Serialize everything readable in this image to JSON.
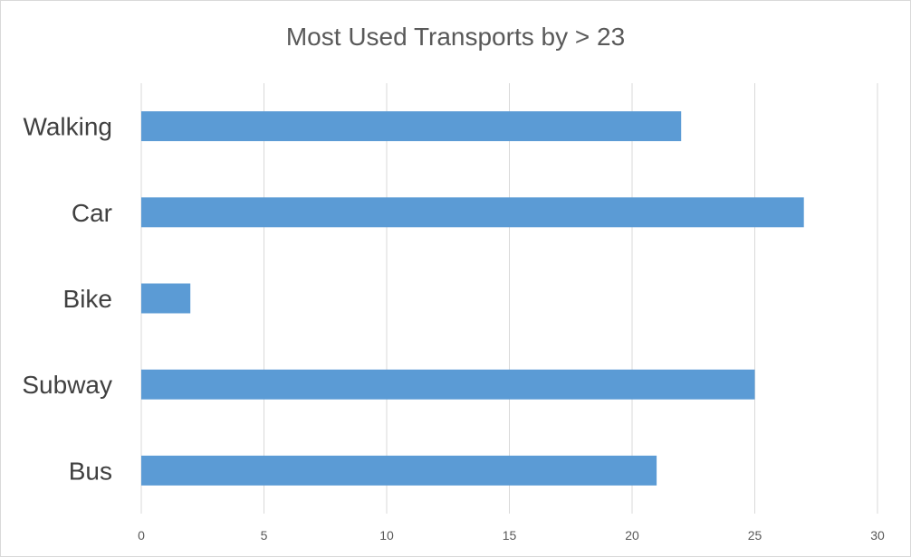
{
  "chart_data": {
    "type": "bar",
    "orientation": "horizontal",
    "title": "Most Used Transports by > 23",
    "xlabel": "",
    "ylabel": "",
    "categories": [
      "Walking",
      "Car",
      "Bike",
      "Subway",
      "Bus"
    ],
    "values": [
      22,
      27,
      2,
      25,
      21
    ],
    "xlim": [
      0,
      30
    ],
    "x_ticks": [
      0,
      5,
      10,
      15,
      20,
      25,
      30
    ],
    "grid": true,
    "legend": "none",
    "bar_color": "#5b9bd5",
    "grid_color": "#d9d9d9"
  }
}
